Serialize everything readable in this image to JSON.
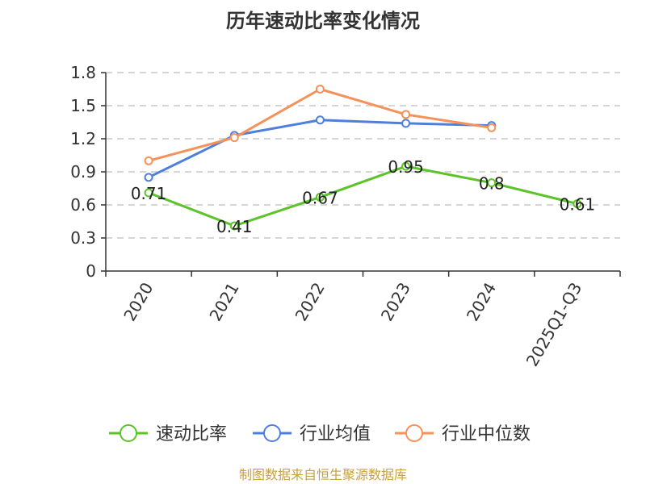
{
  "chart_data": {
    "type": "line",
    "title": "历年速动比率变化情况",
    "categories": [
      "2020",
      "2021",
      "2022",
      "2023",
      "2024",
      "2025Q1-Q3"
    ],
    "ylim": [
      0,
      1.8
    ],
    "yticks": [
      "0",
      "0.3",
      "0.6",
      "0.9",
      "1.2",
      "1.5",
      "1.8"
    ],
    "grid": true,
    "legend_position": "bottom",
    "series": [
      {
        "name": "速动比率",
        "color": "#5cc328",
        "values": [
          0.71,
          0.41,
          0.67,
          0.95,
          0.8,
          0.61
        ],
        "labels": [
          "0.71",
          "0.41",
          "0.67",
          "0.95",
          "0.8",
          "0.61"
        ]
      },
      {
        "name": "行业均值",
        "color": "#4f7fdc",
        "values": [
          0.85,
          1.23,
          1.37,
          1.34,
          1.32,
          null
        ]
      },
      {
        "name": "行业中位数",
        "color": "#f5925a",
        "values": [
          1.0,
          1.21,
          1.65,
          1.42,
          1.3,
          null
        ]
      }
    ]
  },
  "source_text": "制图数据来自恒生聚源数据库"
}
